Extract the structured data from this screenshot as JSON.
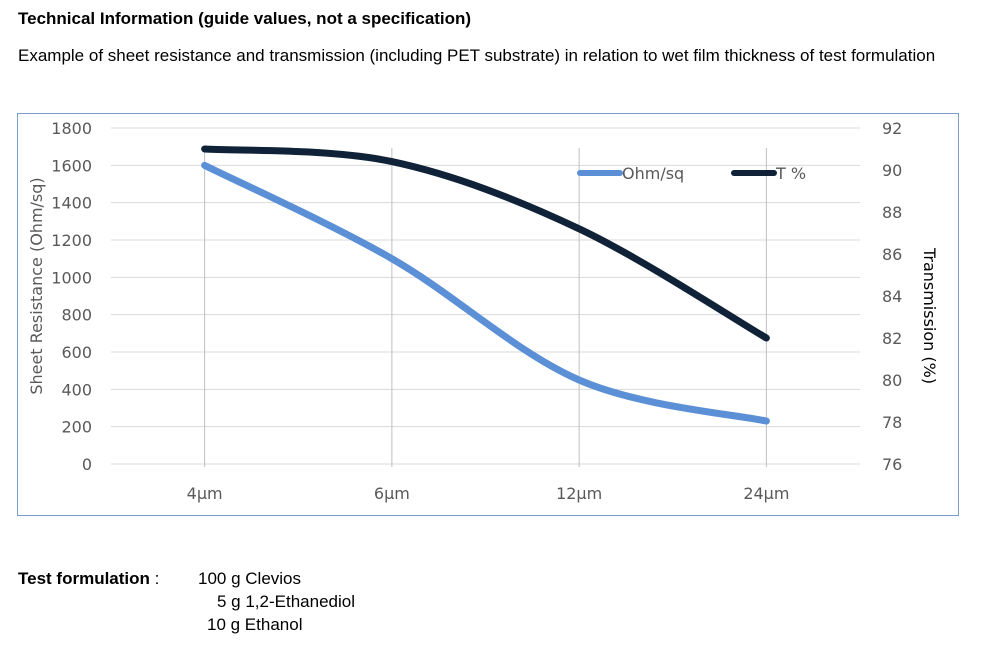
{
  "heading": "Technical Information (guide values, not a specification)",
  "description": "Example of sheet resistance and transmission (including PET substrate) in relation to wet film thickness of test formulation",
  "chart_data": {
    "type": "line",
    "categories": [
      "4µm",
      "6µm",
      "12µm",
      "24µm"
    ],
    "series": [
      {
        "name": "Ohm/sq",
        "axis": "left",
        "color": "#5b8fd6",
        "values": [
          1600,
          1100,
          450,
          230
        ]
      },
      {
        "name": "T %",
        "axis": "right",
        "color": "#0f2238",
        "values": [
          91.0,
          90.4,
          87.2,
          82.0
        ]
      }
    ],
    "ylabel": "Sheet Resistance (Ohm/sq)",
    "y2label": "Transmission (%)",
    "ylim": [
      0,
      1800
    ],
    "yticks": [
      "0",
      "200",
      "400",
      "600",
      "800",
      "1000",
      "1200",
      "1400",
      "1600",
      "1800"
    ],
    "y2lim": [
      76,
      92
    ],
    "y2ticks": [
      "76",
      "78",
      "80",
      "82",
      "84",
      "86",
      "88",
      "90",
      "92"
    ],
    "grid": true,
    "legend_position": "top-right",
    "smooth": true
  },
  "formulation": {
    "label": "Test formulation",
    "separator": " :",
    "ingredients": [
      "100 g Clevios",
      "5 g 1,2-Ethanediol",
      "10 g Ethanol"
    ]
  }
}
